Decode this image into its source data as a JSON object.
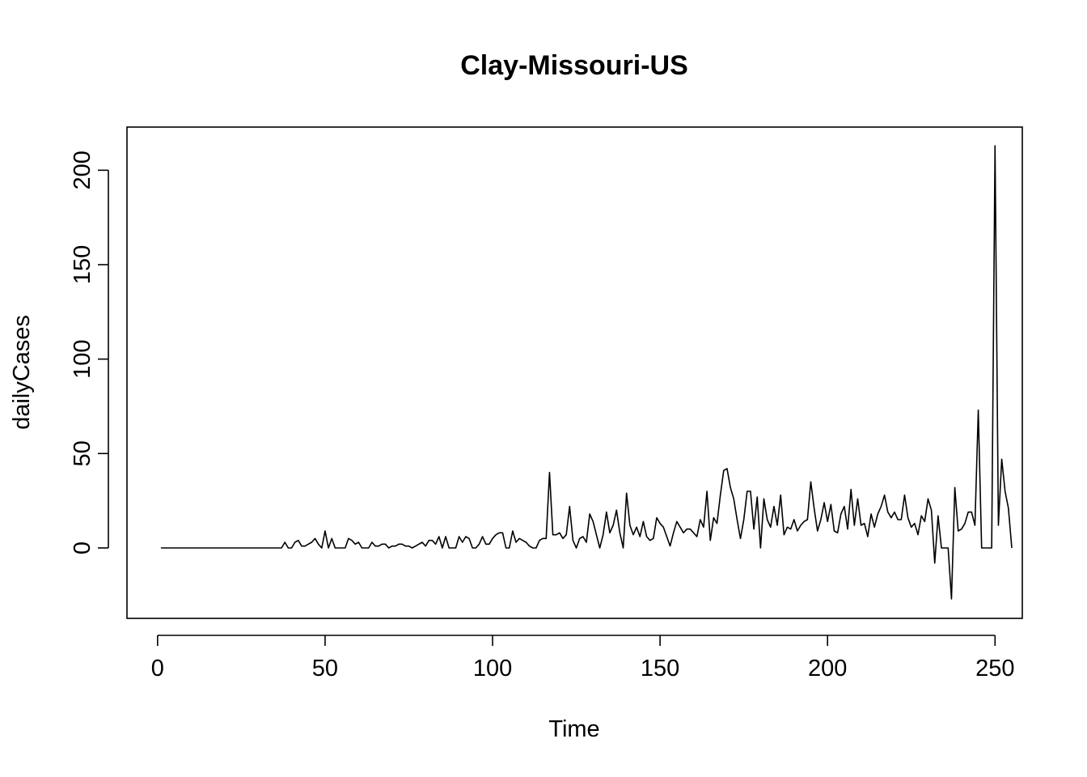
{
  "chart_data": {
    "type": "line",
    "title": "Clay-Missouri-US",
    "xlabel": "Time",
    "ylabel": "dailyCases",
    "xlim": [
      1,
      248
    ],
    "ylim": [
      -27,
      213
    ],
    "x_ticks": [
      0,
      50,
      100,
      150,
      200,
      250
    ],
    "y_ticks": [
      0,
      50,
      100,
      150,
      200
    ],
    "grid": false,
    "legend": "none",
    "series": [
      {
        "x_start": 1,
        "values": [
          0,
          0,
          0,
          0,
          0,
          0,
          0,
          0,
          0,
          0,
          0,
          0,
          0,
          0,
          0,
          0,
          0,
          0,
          0,
          0,
          0,
          0,
          0,
          0,
          0,
          0,
          0,
          0,
          0,
          0,
          0,
          0,
          0,
          0,
          0,
          0,
          0,
          3,
          0,
          0,
          3,
          4,
          1,
          1,
          2,
          3,
          5,
          2,
          0,
          9,
          0,
          5,
          0,
          0,
          0,
          0,
          5,
          4,
          2,
          3,
          0,
          0,
          0,
          3,
          1,
          1,
          2,
          2,
          0,
          1,
          1,
          2,
          2,
          1,
          1,
          0,
          1,
          2,
          3,
          1,
          4,
          4,
          2,
          6,
          0,
          6,
          0,
          0,
          0,
          6,
          3,
          6,
          5,
          0,
          0,
          2,
          6,
          2,
          2,
          5,
          7,
          8,
          8,
          0,
          0,
          9,
          3,
          5,
          4,
          3,
          1,
          0,
          0,
          4,
          5,
          5,
          40,
          7,
          7,
          8,
          5,
          7,
          22,
          4,
          0,
          5,
          6,
          3,
          18,
          14,
          7,
          0,
          7,
          19,
          8,
          12,
          20,
          8,
          0,
          29,
          12,
          7,
          11,
          6,
          14,
          6,
          4,
          5,
          16,
          13,
          11,
          6,
          1,
          8,
          14,
          11,
          8,
          10,
          10,
          8,
          6,
          15,
          11,
          30,
          4,
          16,
          13,
          28,
          41,
          42,
          32,
          26,
          15,
          5,
          15,
          30,
          30,
          10,
          27,
          0,
          26,
          15,
          11,
          22,
          12,
          28,
          7,
          11,
          10,
          15,
          9,
          12,
          14,
          15,
          35,
          21,
          9,
          15,
          24,
          14,
          23,
          9,
          8,
          18,
          22,
          10,
          31,
          12,
          26,
          12,
          13,
          6,
          18,
          11,
          18,
          22,
          28,
          19,
          16,
          19,
          15,
          15,
          28,
          16,
          11,
          13,
          7,
          17,
          14,
          26,
          20,
          -8,
          17,
          0,
          0,
          0,
          -27,
          32,
          9,
          10,
          13,
          19,
          19,
          12,
          73,
          0,
          0,
          0,
          0,
          213,
          12,
          47,
          30,
          21,
          0
        ]
      }
    ]
  }
}
